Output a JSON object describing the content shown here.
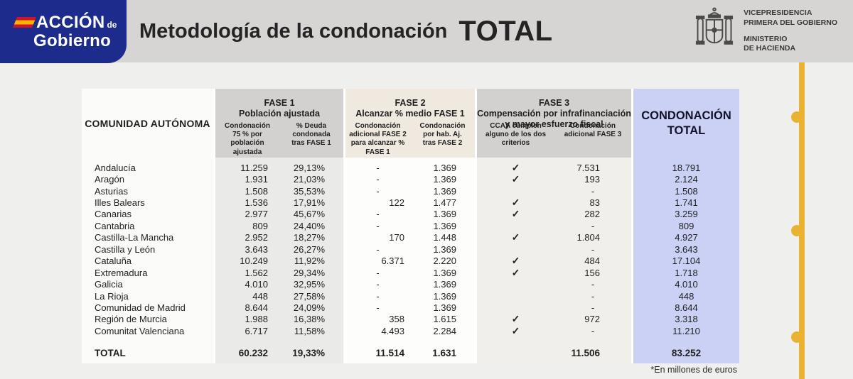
{
  "header": {
    "logo": {
      "word1": "ACCIÓN",
      "word1_suffix": "de",
      "word2": "Gobierno"
    },
    "title": "Metodología de la condonación",
    "title_highlight": "TOTAL",
    "government": {
      "emblem": "spain-coat-of-arms",
      "dept_line1": "VICEPRESIDENCIA",
      "dept_line2": "PRIMERA DEL GOBIERNO",
      "ministry_line1": "MINISTERIO",
      "ministry_line2": "DE HACIENDA"
    }
  },
  "table": {
    "community_header": "COMUNIDAD AUTÓNOMA",
    "phase1": {
      "title": "FASE 1",
      "subtitle": "Población ajustada",
      "col1": "Condonación 75 % por población ajustada",
      "col2": "% Deuda condonada tras FASE 1"
    },
    "phase2": {
      "title": "FASE 2",
      "subtitle": "Alcanzar % medio FASE 1",
      "col1": "Condonación adicional FASE 2 para alcanzar % FASE 1",
      "col2": "Condonación por hab. Aj. tras FASE 2"
    },
    "phase3": {
      "title": "FASE 3",
      "subtitle": "Compensación por infrafinanciación y mayor esfuerzo fiscal",
      "col1": "CCAA cumplen alguno de los dos criterios",
      "col2": "Condonación adicional FASE 3"
    },
    "total_header": "CONDONACIÓN TOTAL",
    "check_glyph": "✓",
    "rows": [
      {
        "name": "Andalucía",
        "f1a": "11.259",
        "f1b": "29,13%",
        "f2a": "-",
        "f2b": "1.369",
        "check": true,
        "f3b": "7.531",
        "total": "18.791"
      },
      {
        "name": "Aragón",
        "f1a": "1.931",
        "f1b": "21,03%",
        "f2a": "-",
        "f2b": "1.369",
        "check": true,
        "f3b": "193",
        "total": "2.124"
      },
      {
        "name": "Asturias",
        "f1a": "1.508",
        "f1b": "35,53%",
        "f2a": "-",
        "f2b": "1.369",
        "check": false,
        "f3b": "-",
        "total": "1.508"
      },
      {
        "name": "Illes Balears",
        "f1a": "1.536",
        "f1b": "17,91%",
        "f2a": "122",
        "f2b": "1.477",
        "check": true,
        "f3b": "83",
        "total": "1.741"
      },
      {
        "name": "Canarias",
        "f1a": "2.977",
        "f1b": "45,67%",
        "f2a": "-",
        "f2b": "1.369",
        "check": true,
        "f3b": "282",
        "total": "3.259"
      },
      {
        "name": "Cantabria",
        "f1a": "809",
        "f1b": "24,40%",
        "f2a": "-",
        "f2b": "1.369",
        "check": false,
        "f3b": "-",
        "total": "809"
      },
      {
        "name": "Castilla-La Mancha",
        "f1a": "2.952",
        "f1b": "18,27%",
        "f2a": "170",
        "f2b": "1.448",
        "check": true,
        "f3b": "1.804",
        "total": "4.927"
      },
      {
        "name": "Castilla y León",
        "f1a": "3.643",
        "f1b": "26,27%",
        "f2a": "-",
        "f2b": "1.369",
        "check": false,
        "f3b": "-",
        "total": "3.643"
      },
      {
        "name": "Cataluña",
        "f1a": "10.249",
        "f1b": "11,92%",
        "f2a": "6.371",
        "f2b": "2.220",
        "check": true,
        "f3b": "484",
        "total": "17.104"
      },
      {
        "name": "Extremadura",
        "f1a": "1.562",
        "f1b": "29,34%",
        "f2a": "-",
        "f2b": "1.369",
        "check": true,
        "f3b": "156",
        "total": "1.718"
      },
      {
        "name": "Galicia",
        "f1a": "4.010",
        "f1b": "32,95%",
        "f2a": "-",
        "f2b": "1.369",
        "check": false,
        "f3b": "-",
        "total": "4.010"
      },
      {
        "name": "La Rioja",
        "f1a": "448",
        "f1b": "27,58%",
        "f2a": "-",
        "f2b": "1.369",
        "check": false,
        "f3b": "-",
        "total": "448"
      },
      {
        "name": "Comunidad de Madrid",
        "f1a": "8.644",
        "f1b": "24,09%",
        "f2a": "-",
        "f2b": "1.369",
        "check": false,
        "f3b": "-",
        "total": "8.644"
      },
      {
        "name": "Región de Murcia",
        "f1a": "1.988",
        "f1b": "16,38%",
        "f2a": "358",
        "f2b": "1.615",
        "check": true,
        "f3b": "972",
        "total": "3.318"
      },
      {
        "name": "Comunitat Valenciana",
        "f1a": "6.717",
        "f1b": "11,58%",
        "f2a": "4.493",
        "f2b": "2.284",
        "check": true,
        "f3b": "-",
        "total": "11.210"
      }
    ],
    "total_row": {
      "name": "TOTAL",
      "f1a": "60.232",
      "f1b": "19,33%",
      "f2a": "11.514",
      "f2b": "1.631",
      "check": false,
      "f3b": "11.506",
      "total": "83.252"
    },
    "footnote": "*En millones de euros"
  },
  "colors": {
    "brand_blue": "#1d2b8d",
    "flag_red": "#d0122a",
    "flag_yellow": "#f7b500",
    "accent_yellow": "#e9b331",
    "lavender": "#cad1f5",
    "header_band": "#d6d5d3",
    "page_bg": "#efefed",
    "group_gray": "#d2d1cf",
    "phase1_data_bg": "#eaeae8",
    "cream": "#f0e9e0",
    "phase2_data_bg": "#fdfdfc",
    "phase3_data_bg": "#f0efec",
    "first_col_bg": "#fbfbfa",
    "text_dark": "#1f1f1f"
  }
}
